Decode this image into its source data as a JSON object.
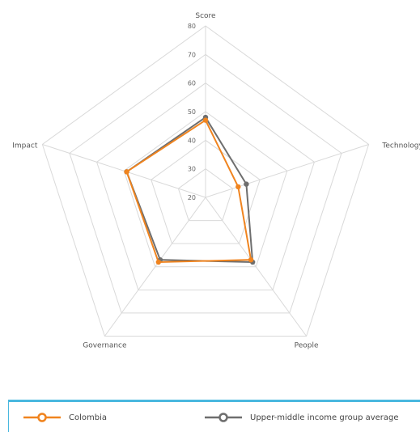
{
  "chart_data": {
    "type": "radar",
    "axes": [
      "Score",
      "Technology",
      "People",
      "Governance",
      "Impact"
    ],
    "rmin": 20,
    "rmax": 80,
    "ticks": [
      20,
      30,
      40,
      50,
      60,
      70,
      80
    ],
    "series": [
      {
        "name": "Upper-middle income group average",
        "color": "#6e6e6e",
        "values": [
          48,
          35,
          48,
          47,
          49
        ]
      },
      {
        "name": "Colombia",
        "color": "#f0841f",
        "values": [
          47,
          32,
          47,
          48,
          49
        ]
      }
    ],
    "grid": true,
    "legend": "bottom"
  }
}
